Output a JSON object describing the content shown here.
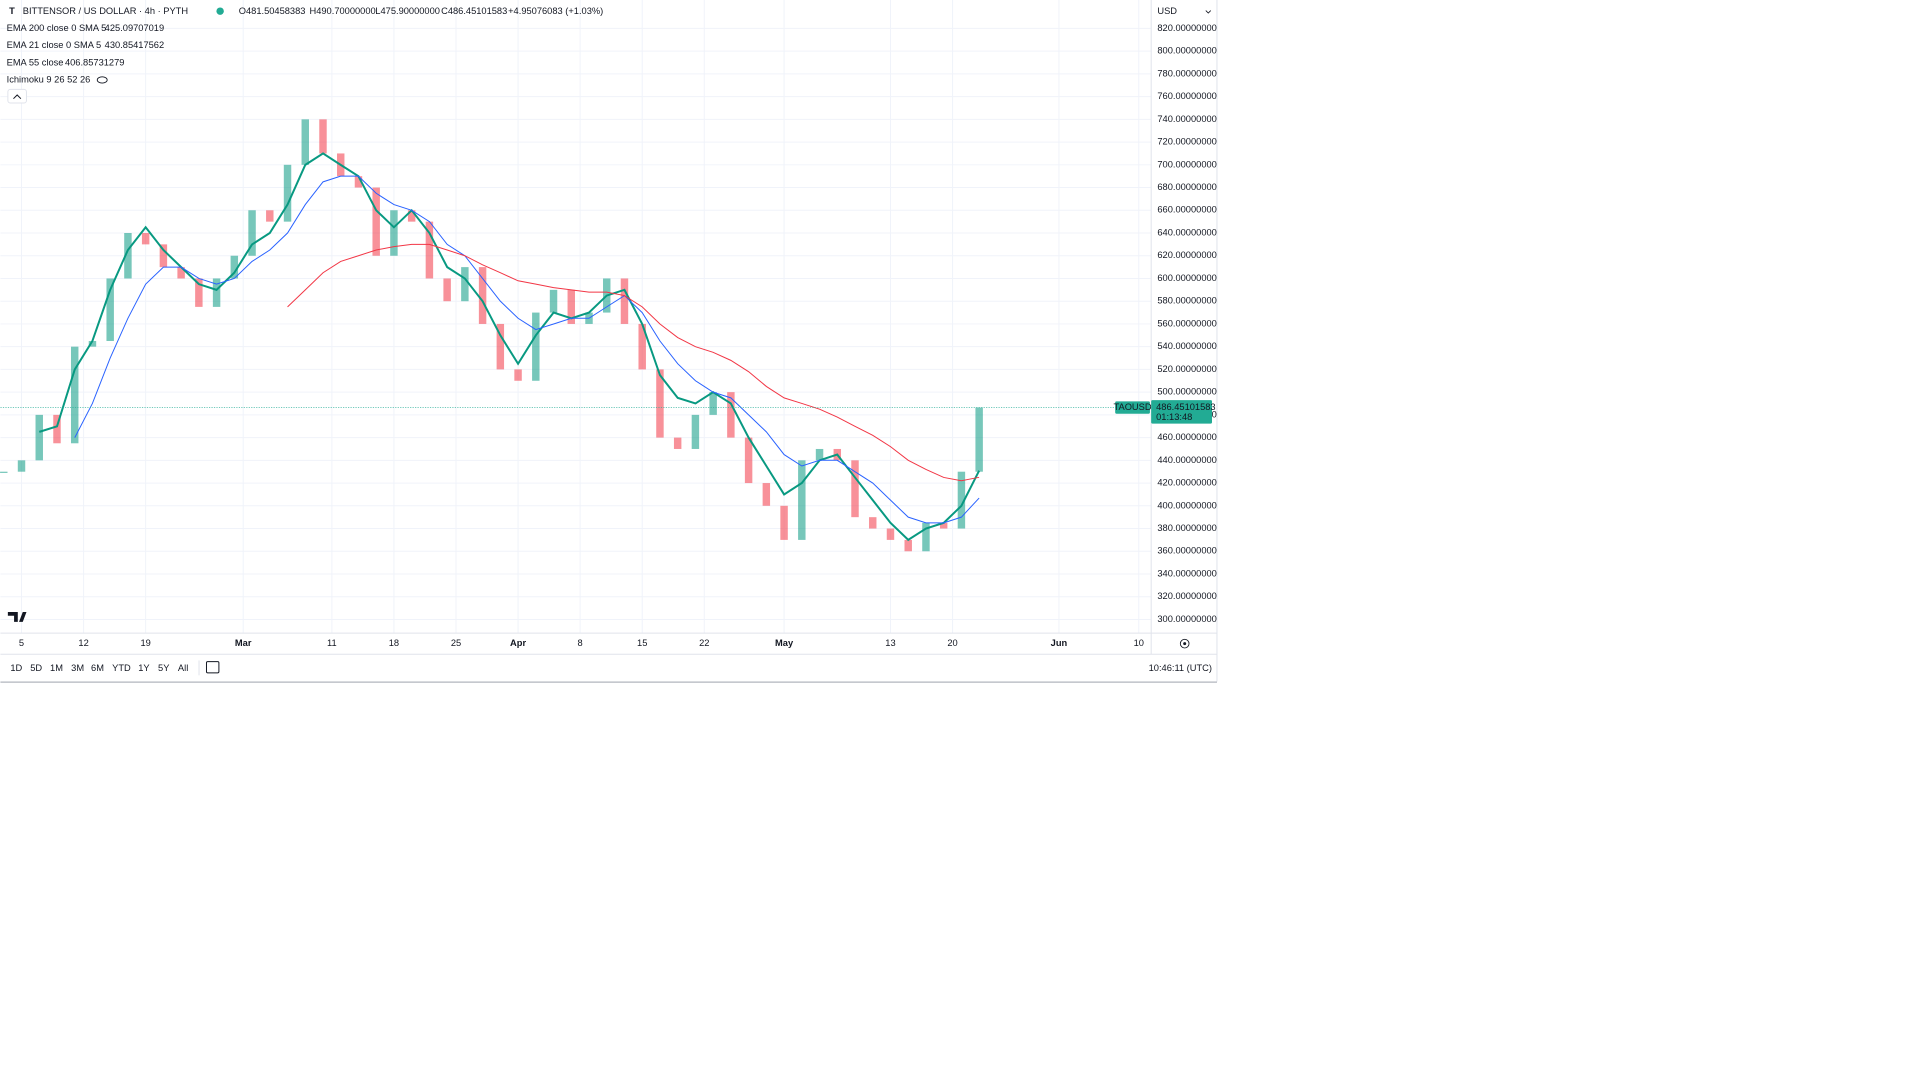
{
  "header": {
    "symbol": "BITTENSOR / US DOLLAR · 4h · PYTH",
    "ohlc": [
      "O481.50458383",
      "H490.70000000",
      "L475.90000000",
      "C486.45101583",
      "+4.95076083 (+1.03%)"
    ]
  },
  "indicators": [
    {
      "name": "EMA 200 close 0 SMA 5",
      "value": "425.09707019",
      "color": "#f23645"
    },
    {
      "name": "EMA 21 close 0 SMA 5",
      "value": "430.85417562",
      "color": "#089981"
    },
    {
      "name": "EMA 55 close",
      "value": "406.85731279",
      "color": "#2962ff"
    },
    {
      "name": "Ichimoku 9 26 52 26"
    }
  ],
  "currency": "USD",
  "chart_data": {
    "type": "candlestick",
    "ylim": [
      288,
      845
    ],
    "yticks": [
      {
        "value": 300,
        "label": "300.00000000"
      },
      {
        "value": 320,
        "label": "320.00000000"
      },
      {
        "value": 340,
        "label": "340.00000000"
      },
      {
        "value": 360,
        "label": "360.00000000"
      },
      {
        "value": 380,
        "label": "380.00000000"
      },
      {
        "value": 400,
        "label": "400.00000000"
      },
      {
        "value": 420,
        "label": "420.00000000"
      },
      {
        "value": 440,
        "label": "440.00000000"
      },
      {
        "value": 460,
        "label": "460.00000000"
      },
      {
        "value": 480,
        "label": "480.00000000"
      },
      {
        "value": 500,
        "label": "500.00000000"
      },
      {
        "value": 520,
        "label": "520.00000000"
      },
      {
        "value": 540,
        "label": "540.00000000"
      },
      {
        "value": 560,
        "label": "560.00000000"
      },
      {
        "value": 580,
        "label": "580.00000000"
      },
      {
        "value": 600,
        "label": "600.00000000"
      },
      {
        "value": 620,
        "label": "620.00000000"
      },
      {
        "value": 640,
        "label": "640.00000000"
      },
      {
        "value": 660,
        "label": "660.00000000"
      },
      {
        "value": 680,
        "label": "680.00000000"
      },
      {
        "value": 700,
        "label": "700.00000000"
      },
      {
        "value": 720,
        "label": "720.00000000"
      },
      {
        "value": 740,
        "label": "740.00000000"
      },
      {
        "value": 760,
        "label": "760.00000000"
      },
      {
        "value": 780,
        "label": "780.00000000"
      },
      {
        "value": 800,
        "label": "800.00000000"
      },
      {
        "value": 820,
        "label": "820.00000000"
      }
    ],
    "grid": true,
    "time_labels": [
      "5",
      "12",
      "19",
      "Mar",
      "11",
      "18",
      "25",
      "Apr",
      "8",
      "15",
      "22",
      "May",
      "13",
      "20",
      "Jun",
      "10"
    ],
    "series": [
      {
        "name": "TAOUSD",
        "up_color": "#089981",
        "down_color": "#f23645",
        "values": [
          430,
          440,
          480,
          455,
          540,
          545,
          600,
          640,
          630,
          610,
          600,
          575,
          600,
          620,
          660,
          650,
          700,
          740,
          710,
          690,
          680,
          620,
          660,
          650,
          600,
          580,
          610,
          560,
          520,
          510,
          570,
          590,
          560,
          570,
          600,
          560,
          520,
          460,
          450,
          480,
          500,
          460,
          420,
          400,
          370,
          440,
          450,
          440,
          390,
          380,
          370,
          360,
          385,
          380,
          430,
          486.45101583
        ]
      },
      {
        "color": "#089981",
        "width": 1.6,
        "values": [
          null,
          null,
          465,
          470,
          520,
          545,
          590,
          625,
          645,
          625,
          610,
          595,
          590,
          605,
          630,
          640,
          665,
          700,
          710,
          700,
          690,
          660,
          645,
          660,
          640,
          610,
          600,
          580,
          550,
          525,
          550,
          570,
          565,
          570,
          585,
          590,
          560,
          515,
          495,
          490,
          500,
          490,
          460,
          435,
          410,
          420,
          440,
          445,
          425,
          405,
          385,
          370,
          380,
          385,
          400,
          430.85417562
        ]
      },
      {
        "color": "#2962ff",
        "width": 0.8,
        "values": [
          null,
          null,
          null,
          null,
          460,
          490,
          530,
          565,
          595,
          610,
          610,
          600,
          595,
          600,
          615,
          625,
          640,
          665,
          685,
          690,
          690,
          675,
          665,
          660,
          650,
          630,
          620,
          600,
          580,
          565,
          555,
          560,
          565,
          565,
          575,
          585,
          570,
          545,
          525,
          510,
          500,
          495,
          480,
          465,
          445,
          435,
          440,
          440,
          430,
          420,
          405,
          390,
          385,
          385,
          390,
          406.85731279
        ]
      },
      {
        "color": "#f23645",
        "width": 0.8,
        "values": [
          null,
          null,
          null,
          null,
          null,
          null,
          null,
          null,
          null,
          null,
          null,
          null,
          null,
          null,
          null,
          null,
          575,
          590,
          605,
          615,
          620,
          625,
          628,
          630,
          630,
          625,
          620,
          612,
          605,
          598,
          595,
          592,
          590,
          588,
          588,
          585,
          575,
          560,
          548,
          540,
          535,
          528,
          518,
          505,
          495,
          490,
          485,
          478,
          470,
          462,
          452,
          440,
          432,
          425,
          422,
          425.09707019
        ]
      }
    ],
    "price_label": {
      "value": 486.45101583,
      "label": "486.45101583"
    },
    "countdown": "01:13:48"
  },
  "toolbar": {
    "ranges": [
      "1D",
      "5D",
      "1M",
      "3M",
      "6M",
      "YTD",
      "1Y",
      "5Y",
      "All"
    ],
    "clock": "10:46:11 (UTC)"
  }
}
